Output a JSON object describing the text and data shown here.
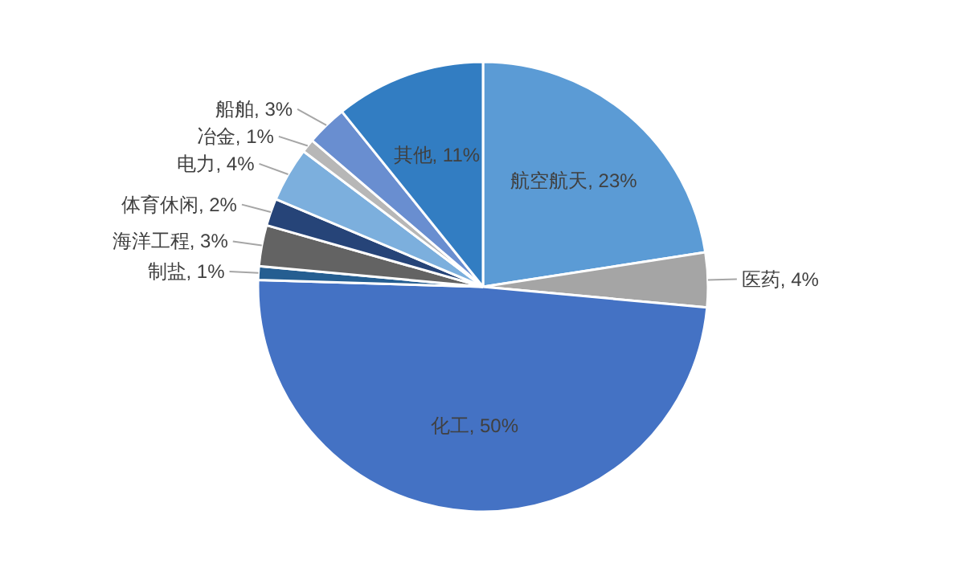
{
  "chart_data": {
    "type": "pie",
    "categories": [
      "航空航天",
      "医药",
      "化工",
      "制盐",
      "海洋工程",
      "体育休闲",
      "电力",
      "冶金",
      "船舶",
      "其他"
    ],
    "values": [
      23,
      4,
      50,
      1,
      3,
      2,
      4,
      1,
      3,
      11
    ],
    "value_labels": [
      "23%",
      "4%",
      "50%",
      "1%",
      "3%",
      "2%",
      "4%",
      "1%",
      "3%",
      "11%"
    ],
    "colors": [
      "#5b9bd5",
      "#a5a5a5",
      "#4472c4",
      "#255e91",
      "#636363",
      "#264478",
      "#7cafdd",
      "#b7b7b7",
      "#698ed0",
      "#327dc2"
    ],
    "legend": false
  }
}
